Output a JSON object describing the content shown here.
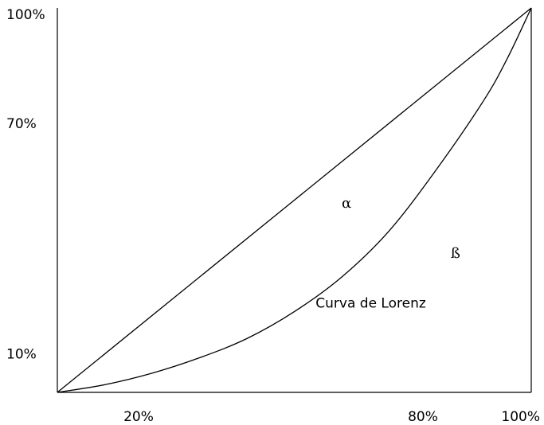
{
  "chart_data": {
    "type": "line",
    "title": "",
    "xlabel": "",
    "ylabel": "",
    "xlim": [
      0,
      100
    ],
    "ylim": [
      0,
      100
    ],
    "grid": false,
    "x_tick_labels": [
      {
        "value": 20,
        "label": "20%"
      },
      {
        "value": 80,
        "label": "80%"
      },
      {
        "value": 100,
        "label": "100%"
      }
    ],
    "y_tick_labels": [
      {
        "value": 100,
        "label": "100%"
      },
      {
        "value": 70,
        "label": "70%"
      },
      {
        "value": 10,
        "label": "10%"
      }
    ],
    "series": [
      {
        "kind": "equality-line",
        "x": [
          0,
          100
        ],
        "y": [
          0,
          100
        ]
      },
      {
        "kind": "lorenz-curve",
        "x": [
          0,
          10,
          20,
          30,
          40,
          50,
          60,
          70,
          80,
          90,
          95,
          100
        ],
        "y": [
          0,
          2,
          5,
          9,
          14,
          21,
          30,
          42,
          58,
          76,
          87,
          100
        ]
      }
    ],
    "annotations": [
      {
        "text": "α",
        "x": 60,
        "y": 48,
        "style": "greek"
      },
      {
        "text": "ß",
        "x": 83,
        "y": 35,
        "style": "greek"
      },
      {
        "text": "Curva de Lorenz",
        "x": 54.5,
        "y": 22,
        "style": "normal"
      }
    ],
    "colors": {
      "line": "#000000",
      "text": "#000000",
      "background": "#ffffff"
    }
  }
}
